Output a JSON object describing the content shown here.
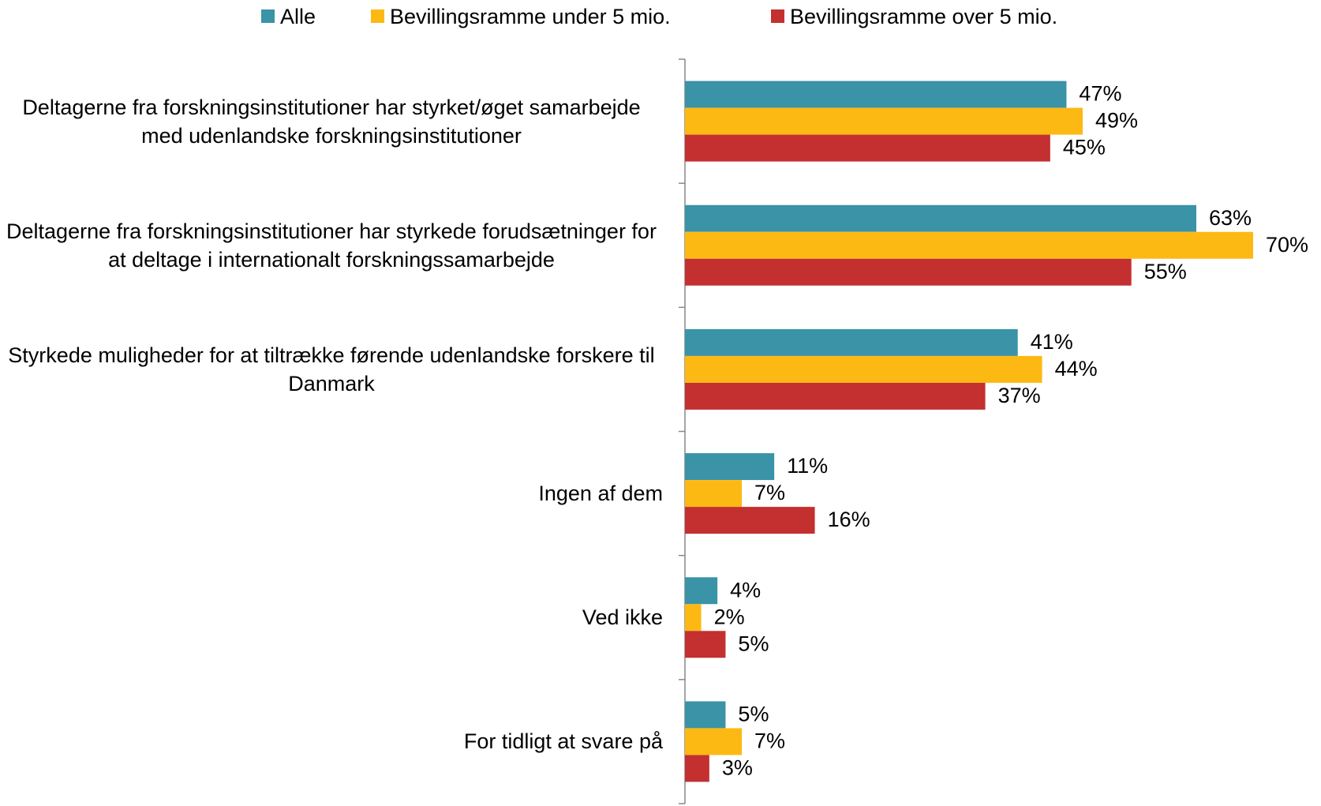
{
  "chart_data": {
    "type": "bar",
    "orientation": "horizontal",
    "categories": [
      "Deltagerne fra forskningsinstitutioner har styrket/øget samarbejde med udenlandske forskningsinstitutioner",
      "Deltagerne fra forskningsinstitutioner har styrkede forudsætninger for at deltage i internationalt forskningssamarbejde",
      "Styrkede muligheder for at tiltrække førende udenlandske forskere til Danmark",
      "Ingen af dem",
      "Ved ikke",
      "For tidligt at svare på"
    ],
    "series": [
      {
        "name": "Alle",
        "color": "#3a93a7",
        "values": [
          47,
          63,
          41,
          11,
          4,
          5
        ],
        "value_labels": [
          "47%",
          "63%",
          "41%",
          "11%",
          "4%",
          "5%"
        ]
      },
      {
        "name": "Bevillingsramme under 5 mio.",
        "color": "#fdb913",
        "values": [
          49,
          70,
          44,
          7,
          2,
          7
        ],
        "value_labels": [
          "49%",
          "70%",
          "44%",
          "7%",
          "2%",
          "7%"
        ]
      },
      {
        "name": "Bevillingsramme over 5 mio.",
        "color": "#c3302f",
        "values": [
          45,
          55,
          37,
          16,
          5,
          3
        ],
        "value_labels": [
          "45%",
          "55%",
          "37%",
          "16%",
          "5%",
          "3%"
        ]
      }
    ],
    "legend": "top"
  }
}
